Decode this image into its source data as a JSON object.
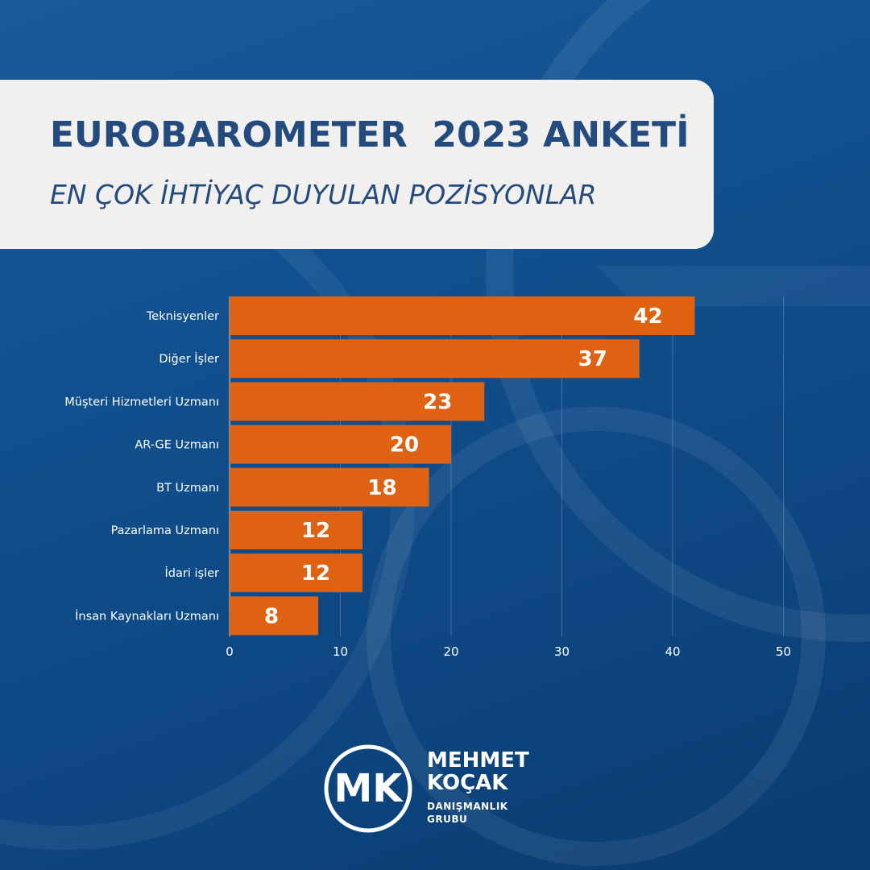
{
  "header": {
    "title": "EUROBAROMETER  2023 ANKETİ",
    "subtitle": "EN ÇOK İHTİYAÇ DUYULAN POZİSYONLAR"
  },
  "chart_data": {
    "type": "bar",
    "orientation": "horizontal",
    "categories": [
      "Teknisyenler",
      "Diğer İşler",
      "Müşteri Hizmetleri Uzmanı",
      "AR-GE Uzmanı",
      "BT Uzmanı",
      "Pazarlama Uzmanı",
      "İdari işler",
      "İnsan Kaynakları Uzmanı"
    ],
    "values": [
      42,
      37,
      23,
      20,
      18,
      12,
      12,
      8
    ],
    "xlim": [
      0,
      50
    ],
    "xticks": [
      0,
      10,
      20,
      30,
      40,
      50
    ],
    "data_labels": true,
    "grid": "vertical",
    "bar_color": "#df6212"
  },
  "brand": {
    "logo_letters": "MK",
    "name_line1": "MEHMET",
    "name_line2": "KOÇAK",
    "sub_line1": "DANIŞMANLIK",
    "sub_line2": "GRUBU"
  },
  "colors": {
    "background": "#11508f",
    "card": "#f1f0ee",
    "title": "#234b7e",
    "bar": "#df6212",
    "text_light": "#ffffff"
  }
}
